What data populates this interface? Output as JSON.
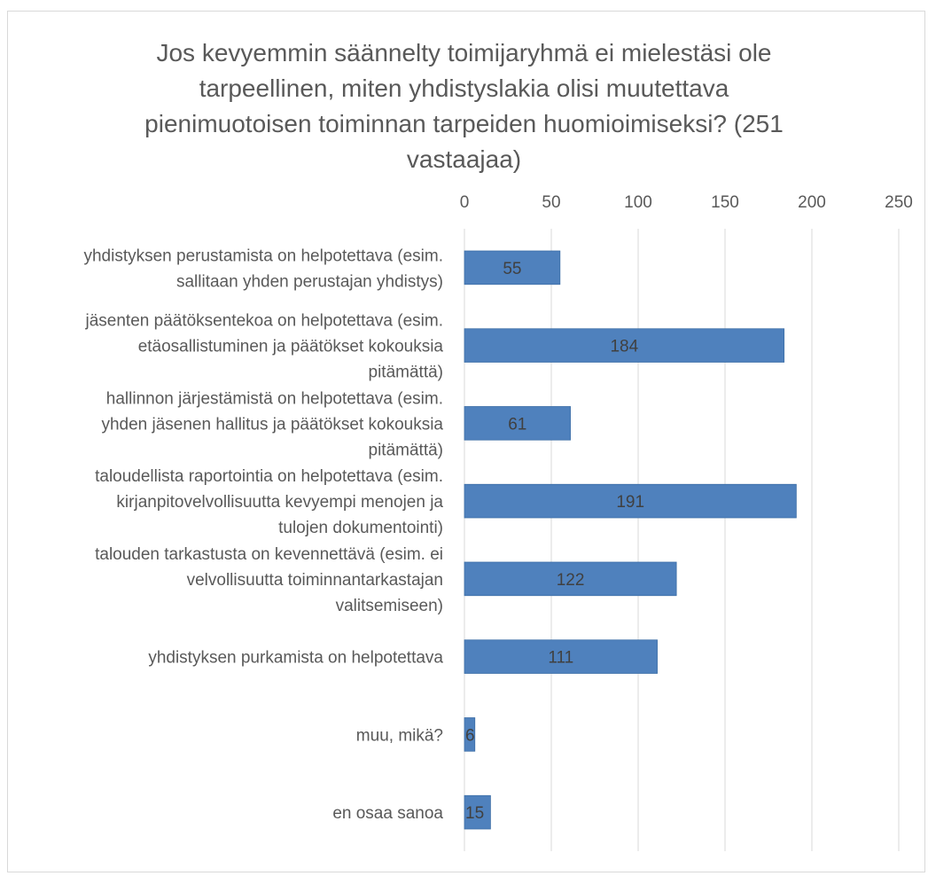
{
  "chart_data": {
    "type": "bar",
    "orientation": "horizontal",
    "title_lines": [
      "Jos kevyemmin säännelty toimijaryhmä ei mielestäsi ole",
      "tarpeellinen, miten yhdistyslakia olisi muutettava",
      "pienimuotoisen toiminnan tarpeiden huomioimiseksi? (251",
      "vastaajaa)"
    ],
    "categories": [
      [
        "yhdistyksen perustamista on helpotettava (esim.",
        "sallitaan yhden perustajan yhdistys)"
      ],
      [
        "jäsenten päätöksentekoa on helpotettava (esim.",
        "etäosallistuminen ja päätökset kokouksia",
        "pitämättä)"
      ],
      [
        "hallinnon järjestämistä on helpotettava (esim.",
        "yhden jäsenen hallitus ja päätökset kokouksia",
        "pitämättä)"
      ],
      [
        "taloudellista raportointia on helpotettava (esim.",
        "kirjanpitovelvollisuutta kevyempi menojen ja",
        "tulojen dokumentointi)"
      ],
      [
        "talouden tarkastusta on kevennettävä (esim. ei",
        "velvollisuutta toiminnantarkastajan",
        "valitsemiseen)"
      ],
      [
        "yhdistyksen purkamista on helpotettava"
      ],
      [
        "muu, mikä?"
      ],
      [
        "en osaa sanoa"
      ]
    ],
    "values": [
      55,
      184,
      61,
      191,
      122,
      111,
      6,
      15
    ],
    "xlim": [
      0,
      250
    ],
    "xticks": [
      0,
      50,
      100,
      150,
      200,
      250
    ],
    "xaxis_position": "top",
    "grid": true,
    "legend": "none",
    "data_labels": true,
    "colors": {
      "bar": "#4f81bd",
      "bar_edge": "#3c6ea6",
      "grid": "#d9d9d9",
      "text": "#595959",
      "label_text": "#404040"
    }
  }
}
